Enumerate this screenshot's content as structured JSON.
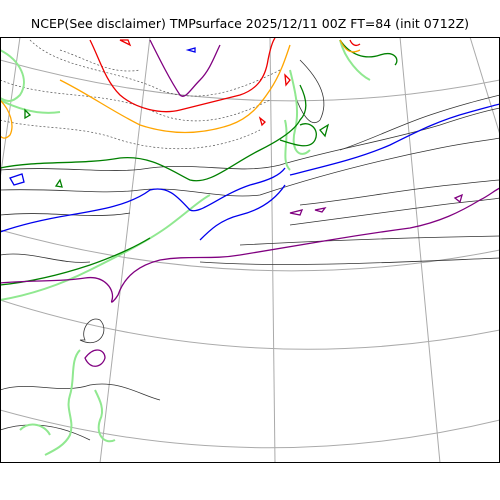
{
  "title": "NCEP(See disclaimer) TMPsurface 2025/12/11 00Z FT=84 (init 0712Z)",
  "map_data": {
    "type": "contour-map",
    "variable": "TMPsurface",
    "projection": "polar stereographic",
    "graticule": true,
    "contour_colors": {
      "thin": "#333333",
      "dotted": "#555555",
      "light_green": "#90e890",
      "dark_green": "#008000",
      "blue": "#0000ee",
      "purple": "#800080",
      "orange": "#ffa500",
      "red": "#ee0000",
      "grid": "#aaaaaa"
    }
  }
}
